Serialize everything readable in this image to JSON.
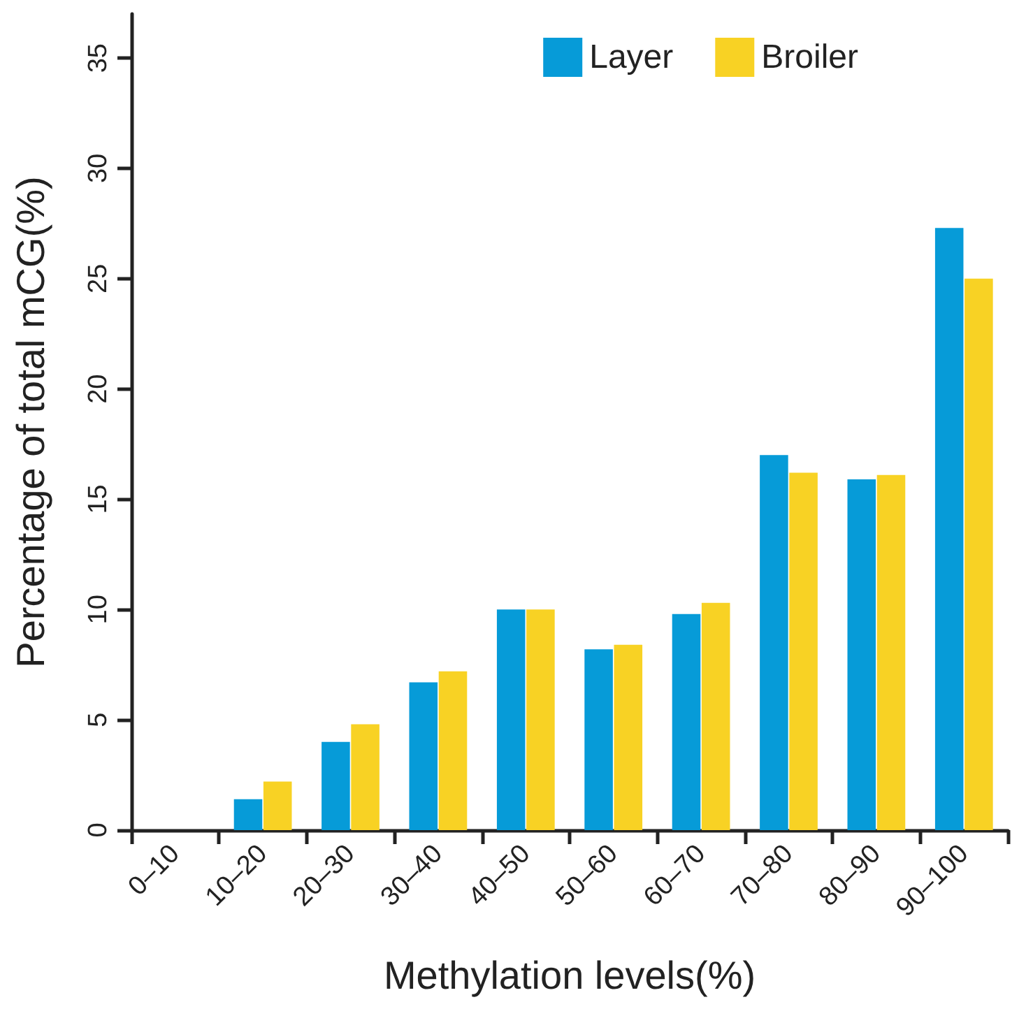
{
  "chart_data": {
    "type": "bar",
    "xlabel": "Methylation levels(%)",
    "ylabel": "Percentage of total mCG(%)",
    "categories": [
      "0–10",
      "10–20",
      "20–30",
      "30–40",
      "40–50",
      "50–60",
      "60–70",
      "70–80",
      "80–90",
      "90–100"
    ],
    "series": [
      {
        "name": "Layer",
        "color": "#069bd8",
        "values": [
          0,
          1.4,
          4.0,
          6.7,
          10.0,
          8.2,
          9.8,
          17.0,
          15.9,
          27.3
        ]
      },
      {
        "name": "Broiler",
        "color": "#f8d224",
        "values": [
          0,
          2.2,
          4.8,
          7.2,
          10.0,
          8.4,
          10.3,
          16.2,
          16.1,
          25.0
        ]
      }
    ],
    "ylim": [
      0,
      37
    ],
    "yticks": [
      0,
      5,
      10,
      15,
      20,
      25,
      30,
      35
    ],
    "grid": false,
    "legend": "top right"
  }
}
